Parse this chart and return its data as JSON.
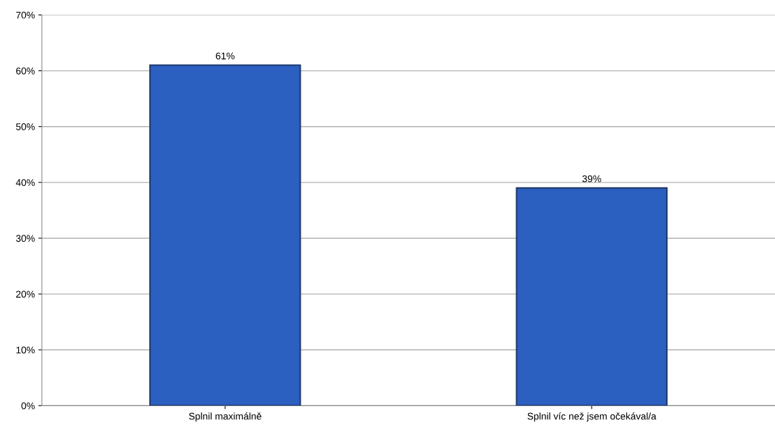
{
  "chart_data": {
    "type": "bar",
    "categories": [
      "Splnil maximálně",
      "Splnil víc než jsem očekával/a"
    ],
    "values": [
      61,
      39
    ],
    "value_labels": [
      "61%",
      "39%"
    ],
    "color": "#2b5fc0",
    "ylim": [
      0,
      70
    ],
    "yticks": [
      {
        "value": 0,
        "label": "0%"
      },
      {
        "value": 10,
        "label": "10%"
      },
      {
        "value": 20,
        "label": "20%"
      },
      {
        "value": 30,
        "label": "30%"
      },
      {
        "value": 40,
        "label": "40%"
      },
      {
        "value": 50,
        "label": "50%"
      },
      {
        "value": 60,
        "label": "60%"
      },
      {
        "value": 70,
        "label": "70%"
      }
    ],
    "grid": "y",
    "legend": false
  }
}
